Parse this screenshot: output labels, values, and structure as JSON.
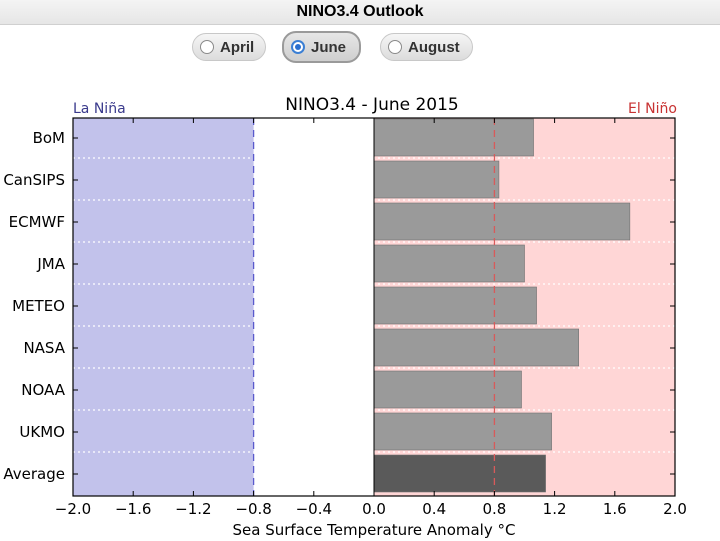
{
  "page": {
    "title": "NINO3.4 Outlook"
  },
  "tabs": [
    {
      "label": "April",
      "selected": false
    },
    {
      "label": "June",
      "selected": true
    },
    {
      "label": "August",
      "selected": false
    }
  ],
  "chart_data": {
    "type": "bar",
    "orientation": "horizontal",
    "title": "NINO3.4 - June 2015",
    "xlabel": "Sea Surface Temperature Anomaly °C",
    "ylabel": "",
    "xlim": [
      -2.0,
      2.0
    ],
    "xticks": [
      "−2.0",
      "−1.6",
      "−1.2",
      "−0.8",
      "−0.4",
      "0.0",
      "0.4",
      "0.8",
      "1.2",
      "1.6",
      "2.0"
    ],
    "categories": [
      "BoM",
      "CanSIPS",
      "ECMWF",
      "JMA",
      "METEO",
      "NASA",
      "NOAA",
      "UKMO",
      "Average"
    ],
    "values": [
      1.06,
      0.83,
      1.7,
      1.0,
      1.08,
      1.36,
      0.98,
      1.18,
      1.14
    ],
    "thresholds": {
      "la_nina": -0.8,
      "el_nino": 0.8
    },
    "region_labels": {
      "la_nina": "La Niña",
      "el_nino": "El Niño"
    },
    "colors": {
      "la_nina_region": "#c2c2eb",
      "el_nino_region": "#ffd6d6",
      "bar": "#9a9a9a",
      "average_bar": "#5a5a5a",
      "la_nina_text": "#3a3a8c",
      "el_nino_text": "#c83232",
      "la_nina_line": "#5a5acc",
      "el_nino_line": "#d85a5a"
    },
    "grid": "horizontal dotted"
  }
}
